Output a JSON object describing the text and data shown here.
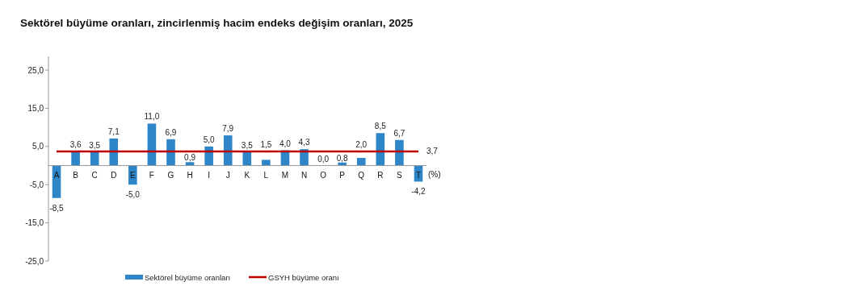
{
  "chart_data": {
    "type": "bar",
    "title": "Sektörel büyüme oranları, zincirlenmiş hacim endeks değişim oranları, 2025",
    "categories": [
      "A",
      "B",
      "C",
      "D",
      "E",
      "F",
      "G",
      "H",
      "I",
      "J",
      "K",
      "L",
      "M",
      "N",
      "O",
      "P",
      "Q",
      "R",
      "S",
      "T"
    ],
    "series": [
      {
        "name": "Sektörel büyüme oranları",
        "color": "#2e86c8",
        "values": [
          -8.5,
          3.6,
          3.5,
          7.1,
          -5.0,
          11.0,
          6.9,
          0.9,
          5.0,
          7.9,
          3.5,
          1.5,
          4.0,
          4.3,
          0.0,
          0.8,
          2.0,
          8.5,
          6.7,
          -4.2
        ],
        "value_labels": [
          "-8,5",
          "3,6",
          "3,5",
          "7,1",
          "-5,0",
          "11,0",
          "6,9",
          "0,9",
          "5,0",
          "7,9",
          "3,5",
          "1,5",
          "4,0",
          "4,3",
          "0,0",
          "0,8",
          "2,0",
          "8,5",
          "6,7",
          "-4,2"
        ]
      },
      {
        "name": "GSYH büyüme oranı",
        "type": "line",
        "color": "#c00000",
        "values": [
          3.7,
          3.7,
          3.7,
          3.7,
          3.7,
          3.7,
          3.7,
          3.7,
          3.7,
          3.7,
          3.7,
          3.7,
          3.7,
          3.7,
          3.7,
          3.7,
          3.7,
          3.7,
          3.7,
          3.7
        ],
        "value_labels": [
          null,
          null,
          null,
          null,
          null,
          null,
          null,
          null,
          null,
          null,
          null,
          null,
          null,
          null,
          null,
          null,
          null,
          null,
          null,
          "3,7"
        ]
      }
    ],
    "ylim": [
      -25,
      28.6
    ],
    "yticks": [
      {
        "value": -25,
        "label": "-25,0"
      },
      {
        "value": -15,
        "label": "-15,0"
      },
      {
        "value": -5,
        "label": "-5,0"
      },
      {
        "value": 5,
        "label": "5,0"
      },
      {
        "value": 15,
        "label": "15,0"
      },
      {
        "value": 25,
        "label": "25,0"
      }
    ],
    "annotations": [
      "(%)"
    ],
    "grid": false,
    "legend": "bottom",
    "line_style": "solid"
  }
}
